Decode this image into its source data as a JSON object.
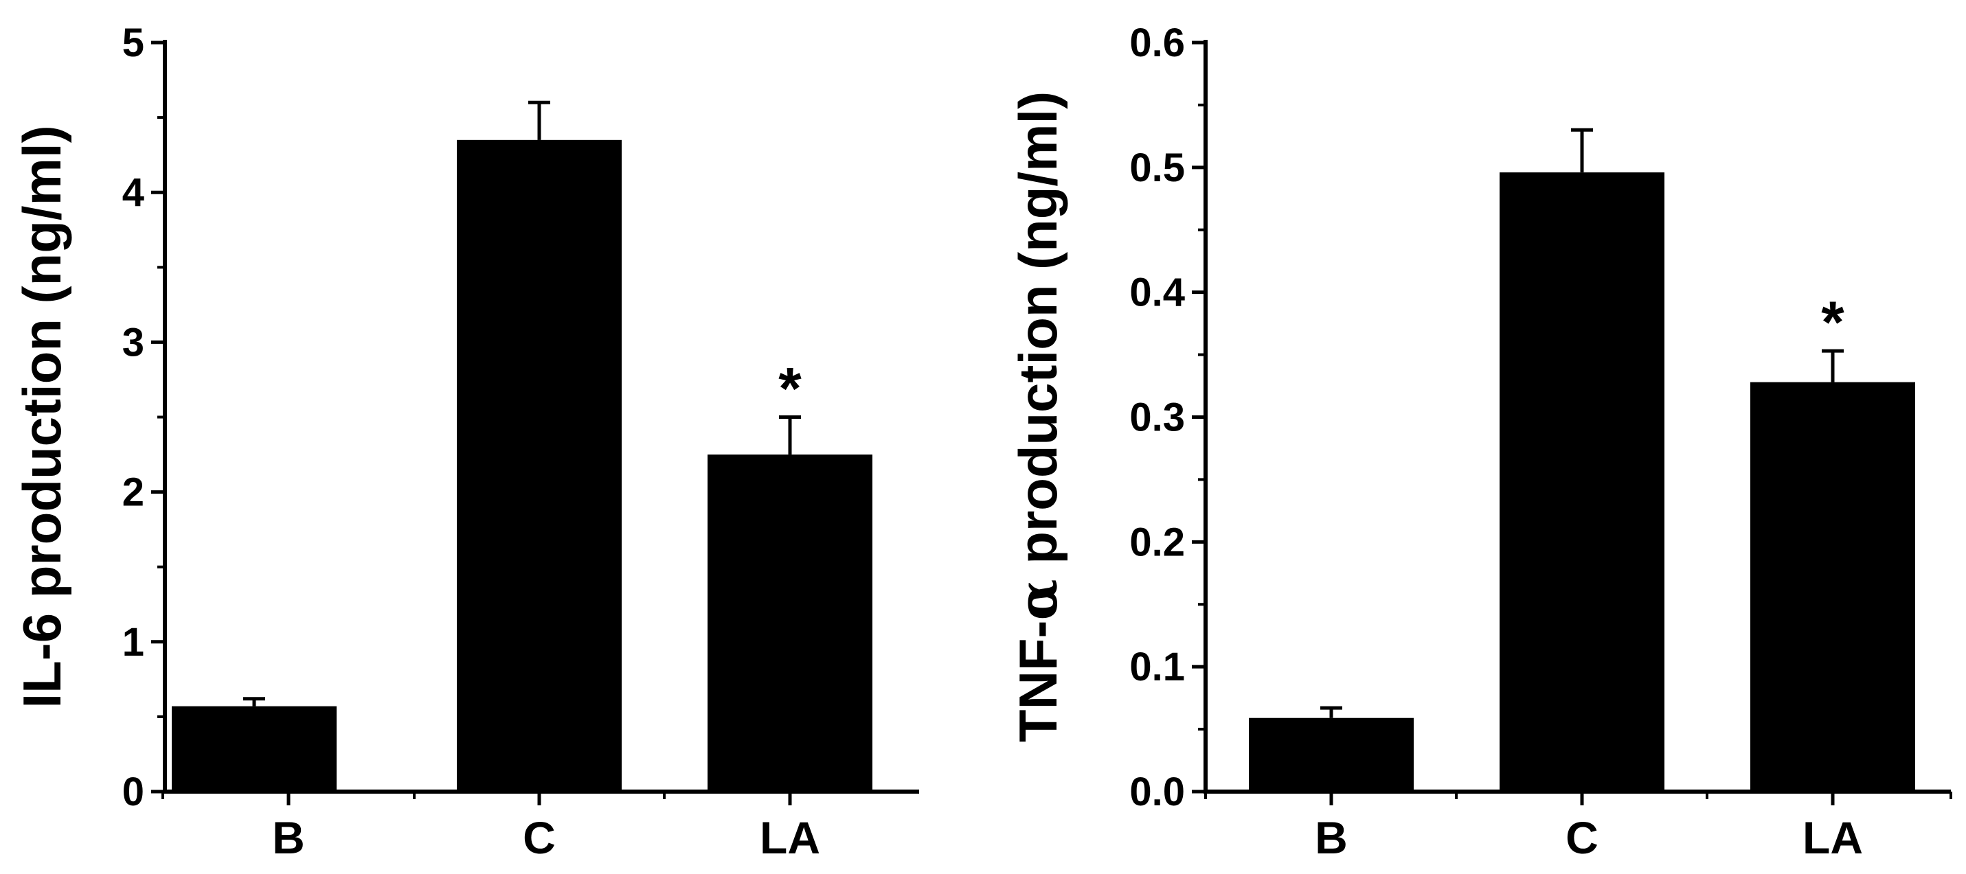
{
  "chart_data": [
    {
      "type": "bar",
      "categories": [
        "B",
        "C",
        "LA"
      ],
      "values": [
        0.57,
        4.35,
        2.25
      ],
      "error": [
        0.05,
        0.25,
        0.25
      ],
      "annotations": [
        "",
        "",
        "*"
      ],
      "ylabel_parts": [
        "IL-6 production (ng/ml)"
      ],
      "ylim": [
        0,
        5
      ],
      "yticks": [
        "0",
        "1",
        "2",
        "3",
        "4",
        "5"
      ],
      "ytick_values": [
        0,
        1,
        2,
        3,
        4,
        5
      ],
      "grid": false,
      "bar_color": "#000000"
    },
    {
      "type": "bar",
      "categories": [
        "B",
        "C",
        "LA"
      ],
      "values": [
        0.059,
        0.496,
        0.328
      ],
      "error": [
        0.008,
        0.034,
        0.025
      ],
      "annotations": [
        "",
        "",
        "*"
      ],
      "ylabel_parts": [
        "TNF-",
        "α",
        " production (ng/ml)"
      ],
      "ylim": [
        0,
        0.6
      ],
      "yticks": [
        "0.0",
        "0.1",
        "0.2",
        "0.3",
        "0.4",
        "0.5",
        "0.6"
      ],
      "ytick_values": [
        0,
        0.1,
        0.2,
        0.3,
        0.4,
        0.5,
        0.6
      ],
      "grid": false,
      "bar_color": "#000000"
    }
  ]
}
